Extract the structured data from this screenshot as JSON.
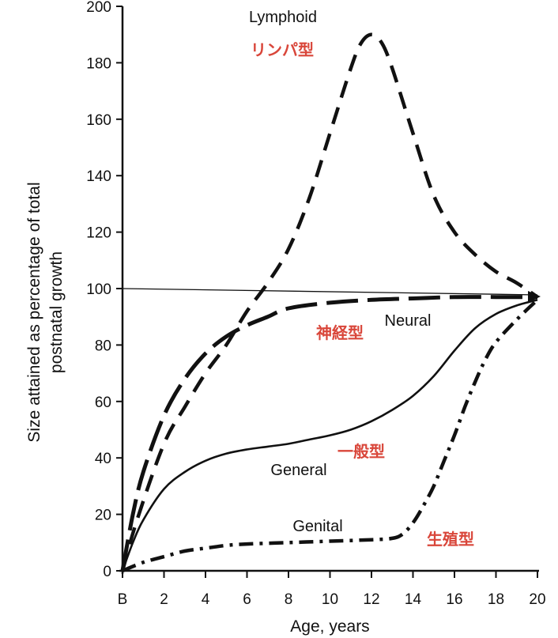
{
  "chart_data": {
    "type": "line",
    "title": "",
    "xlabel": "Age, years",
    "ylabel_lines": [
      "Size attained as percentage of total",
      "postnatal growth"
    ],
    "xlim": [
      0,
      20
    ],
    "ylim": [
      0,
      200
    ],
    "x_ticks": [
      {
        "value": 0,
        "label": "B"
      },
      {
        "value": 2,
        "label": "2"
      },
      {
        "value": 4,
        "label": "4"
      },
      {
        "value": 6,
        "label": "6"
      },
      {
        "value": 8,
        "label": "8"
      },
      {
        "value": 10,
        "label": "10"
      },
      {
        "value": 12,
        "label": "12"
      },
      {
        "value": 14,
        "label": "14"
      },
      {
        "value": 16,
        "label": "16"
      },
      {
        "value": 18,
        "label": "18"
      },
      {
        "value": 20,
        "label": "20"
      }
    ],
    "y_ticks": [
      0,
      20,
      40,
      60,
      80,
      100,
      120,
      140,
      160,
      180,
      200
    ],
    "reference_line": 100,
    "label_color": "#d9463a",
    "series": [
      {
        "name": "Lymphoid",
        "name_jp": "リンパ型",
        "style": "dashed",
        "x": [
          0,
          0.7,
          2,
          3,
          4,
          5,
          6,
          7,
          8,
          9,
          10,
          11,
          11.5,
          12,
          12.5,
          13,
          14,
          15,
          16,
          17,
          18,
          19,
          20
        ],
        "y": [
          0,
          18,
          45,
          58,
          70,
          80,
          92,
          102,
          114,
          132,
          155,
          178,
          187,
          190,
          187,
          178,
          155,
          133,
          120,
          112,
          106,
          102,
          97
        ]
      },
      {
        "name": "Neural",
        "name_jp": "神経型",
        "style": "longdash",
        "x": [
          0,
          0.5,
          1,
          2,
          3,
          4,
          5,
          6,
          7,
          8,
          10,
          12,
          14,
          16,
          18,
          20
        ],
        "y": [
          0,
          20,
          35,
          55,
          68,
          77,
          83,
          87,
          90,
          93,
          95,
          96,
          96.5,
          97,
          97,
          97
        ]
      },
      {
        "name": "General",
        "name_jp": "一般型",
        "style": "solid",
        "x": [
          0,
          0.5,
          1,
          2,
          3,
          4,
          5,
          6,
          7,
          8,
          9,
          10,
          11,
          12,
          13,
          14,
          15,
          16,
          17,
          18,
          19,
          20
        ],
        "y": [
          0,
          10,
          18,
          29,
          35,
          39,
          41.5,
          43,
          44,
          45,
          46.5,
          48,
          50,
          53,
          57,
          62,
          69,
          78,
          86,
          91,
          94,
          96
        ]
      },
      {
        "name": "Genital",
        "name_jp": "生殖型",
        "style": "dashdot",
        "x": [
          0,
          1,
          2,
          3,
          4,
          5,
          6,
          8,
          10,
          12,
          13,
          13.5,
          14,
          14.5,
          15,
          15.5,
          16,
          16.5,
          17,
          17.5,
          18,
          19,
          20
        ],
        "y": [
          0,
          3,
          5,
          7,
          8,
          9,
          9.5,
          10,
          10.5,
          11,
          11.5,
          13,
          17,
          23,
          30,
          39,
          48,
          58,
          67,
          75,
          81,
          89,
          96
        ]
      }
    ]
  }
}
